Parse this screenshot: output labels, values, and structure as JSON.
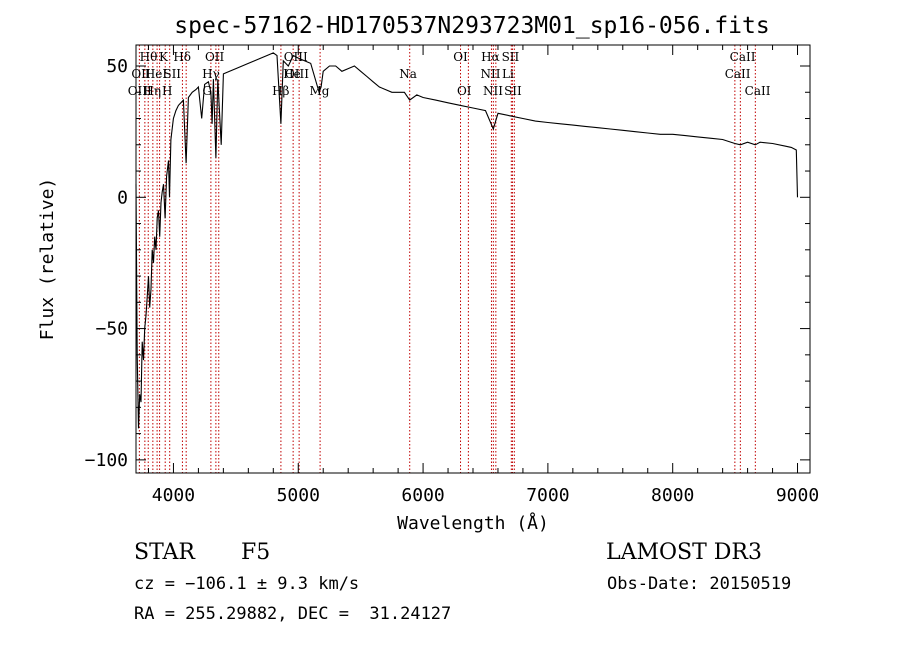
{
  "chart_data": {
    "type": "line",
    "title": "spec-57162-HD170537N293723M01_sp16-056.fits",
    "xlabel": "Wavelength (Å)",
    "ylabel": "Flux (relative)",
    "xlim": [
      3700,
      9100
    ],
    "ylim": [
      -105,
      58
    ],
    "xticks": [
      4000,
      5000,
      6000,
      7000,
      8000,
      9000
    ],
    "yticks": [
      -100,
      -50,
      0,
      50
    ],
    "grid": false,
    "series": [
      {
        "name": "flux",
        "points": [
          [
            3700,
            5
          ],
          [
            3710,
            -60
          ],
          [
            3720,
            -88
          ],
          [
            3730,
            -75
          ],
          [
            3740,
            -78
          ],
          [
            3750,
            -55
          ],
          [
            3760,
            -62
          ],
          [
            3770,
            -50
          ],
          [
            3780,
            -45
          ],
          [
            3790,
            -38
          ],
          [
            3800,
            -30
          ],
          [
            3810,
            -42
          ],
          [
            3820,
            -35
          ],
          [
            3830,
            -20
          ],
          [
            3840,
            -25
          ],
          [
            3850,
            -15
          ],
          [
            3860,
            -20
          ],
          [
            3870,
            -8
          ],
          [
            3880,
            -5
          ],
          [
            3890,
            -15
          ],
          [
            3900,
            -2
          ],
          [
            3910,
            2
          ],
          [
            3920,
            5
          ],
          [
            3933,
            -8
          ],
          [
            3945,
            8
          ],
          [
            3960,
            14
          ],
          [
            3968,
            0
          ],
          [
            3980,
            22
          ],
          [
            4000,
            30
          ],
          [
            4020,
            33
          ],
          [
            4040,
            35
          ],
          [
            4060,
            36
          ],
          [
            4080,
            37
          ],
          [
            4101,
            13
          ],
          [
            4120,
            38
          ],
          [
            4150,
            40
          ],
          [
            4180,
            41
          ],
          [
            4200,
            42
          ],
          [
            4226,
            30
          ],
          [
            4250,
            43
          ],
          [
            4280,
            44
          ],
          [
            4300,
            40
          ],
          [
            4310,
            28
          ],
          [
            4320,
            45
          ],
          [
            4340,
            15
          ],
          [
            4355,
            45
          ],
          [
            4383,
            20
          ],
          [
            4400,
            47
          ],
          [
            4450,
            48
          ],
          [
            4500,
            49
          ],
          [
            4550,
            50
          ],
          [
            4600,
            51
          ],
          [
            4650,
            52
          ],
          [
            4700,
            53
          ],
          [
            4750,
            54
          ],
          [
            4800,
            55
          ],
          [
            4830,
            54
          ],
          [
            4861,
            28
          ],
          [
            4880,
            52
          ],
          [
            4920,
            50
          ],
          [
            4960,
            54
          ],
          [
            5000,
            53
          ],
          [
            5050,
            52
          ],
          [
            5100,
            51
          ],
          [
            5167,
            40
          ],
          [
            5183,
            42
          ],
          [
            5200,
            48
          ],
          [
            5250,
            50
          ],
          [
            5300,
            50
          ],
          [
            5350,
            48
          ],
          [
            5400,
            49
          ],
          [
            5450,
            50
          ],
          [
            5500,
            48
          ],
          [
            5550,
            46
          ],
          [
            5600,
            44
          ],
          [
            5650,
            42
          ],
          [
            5700,
            41
          ],
          [
            5750,
            40
          ],
          [
            5800,
            40
          ],
          [
            5850,
            40
          ],
          [
            5893,
            37
          ],
          [
            5950,
            39
          ],
          [
            6000,
            38
          ],
          [
            6100,
            37
          ],
          [
            6200,
            36
          ],
          [
            6300,
            35
          ],
          [
            6400,
            34
          ],
          [
            6500,
            33
          ],
          [
            6563,
            26
          ],
          [
            6600,
            32
          ],
          [
            6700,
            31
          ],
          [
            6800,
            30
          ],
          [
            6900,
            29
          ],
          [
            7000,
            28.5
          ],
          [
            7100,
            28
          ],
          [
            7200,
            27.5
          ],
          [
            7300,
            27
          ],
          [
            7400,
            26.5
          ],
          [
            7500,
            26
          ],
          [
            7600,
            25.5
          ],
          [
            7700,
            25
          ],
          [
            7800,
            24.5
          ],
          [
            7900,
            24
          ],
          [
            8000,
            24
          ],
          [
            8100,
            23.5
          ],
          [
            8200,
            23
          ],
          [
            8300,
            22.5
          ],
          [
            8400,
            22
          ],
          [
            8498,
            20.5
          ],
          [
            8542,
            20
          ],
          [
            8600,
            21
          ],
          [
            8662,
            20
          ],
          [
            8700,
            21
          ],
          [
            8800,
            20.5
          ],
          [
            8900,
            19.5
          ],
          [
            8950,
            19
          ],
          [
            8990,
            18
          ],
          [
            9000,
            0
          ]
        ]
      }
    ],
    "lines": [
      {
        "w": 3727,
        "labels": [
          "OII"
        ]
      },
      {
        "w": 3771,
        "labels": [
          "OII"
        ]
      },
      {
        "w": 3798,
        "labels": [
          "Hθ"
        ]
      },
      {
        "w": 3835,
        "labels": [
          "Hη"
        ]
      },
      {
        "w": 3869,
        "labels": [
          "NeIII"
        ]
      },
      {
        "w": 3889,
        "labels": [
          "HeI"
        ]
      },
      {
        "w": 3934,
        "labels": [
          "K"
        ]
      },
      {
        "w": 3970,
        "labels": [
          "H"
        ]
      },
      {
        "w": 4072,
        "labels": [
          "SII"
        ]
      },
      {
        "w": 4102,
        "labels": [
          "Hδ"
        ]
      },
      {
        "w": 4300,
        "labels": [
          "G"
        ]
      },
      {
        "w": 4340,
        "labels": [
          "Hγ"
        ]
      },
      {
        "w": 4363,
        "labels": [
          "OIII"
        ]
      },
      {
        "w": 4861,
        "labels": [
          "Hβ"
        ]
      },
      {
        "w": 4959,
        "labels": [
          "OIII"
        ]
      },
      {
        "w": 5007,
        "labels": [
          "OIII"
        ]
      },
      {
        "w": 5175,
        "labels": [
          "Mg"
        ]
      },
      {
        "w": 5893,
        "labels": [
          "Na"
        ]
      },
      {
        "w": 6300,
        "labels": [
          "OI"
        ]
      },
      {
        "w": 6363,
        "labels": [
          "OI"
        ]
      },
      {
        "w": 6548,
        "labels": [
          "NII"
        ]
      },
      {
        "w": 6563,
        "labels": [
          "Hα"
        ]
      },
      {
        "w": 6583,
        "labels": [
          "NII"
        ]
      },
      {
        "w": 6707,
        "labels": [
          "Li"
        ]
      },
      {
        "w": 6716,
        "labels": [
          "SII"
        ]
      },
      {
        "w": 6731,
        "labels": [
          "SII"
        ]
      },
      {
        "w": 8498,
        "labels": [
          "CaII"
        ]
      },
      {
        "w": 8542,
        "labels": [
          "CaII"
        ]
      },
      {
        "w": 8662,
        "labels": [
          "CaII"
        ]
      }
    ],
    "line_labels": [
      {
        "text": "Hθ",
        "w": 3800,
        "row": 0
      },
      {
        "text": "K",
        "w": 3920,
        "row": 0
      },
      {
        "text": "Hδ",
        "w": 4070,
        "row": 0
      },
      {
        "text": "OII",
        "w": 4330,
        "row": 0
      },
      {
        "text": "OIII",
        "w": 4980,
        "row": 0
      },
      {
        "text": "OI",
        "w": 6300,
        "row": 0
      },
      {
        "text": "Hα",
        "w": 6540,
        "row": 0
      },
      {
        "text": "SII",
        "w": 6700,
        "row": 0
      },
      {
        "text": "CaII",
        "w": 8560,
        "row": 0
      },
      {
        "text": "OII",
        "w": 3740,
        "row": 1
      },
      {
        "text": "HeI",
        "w": 3860,
        "row": 1
      },
      {
        "text": "SII",
        "w": 3990,
        "row": 1
      },
      {
        "text": "Hγ",
        "w": 4300,
        "row": 1
      },
      {
        "text": "He",
        "w": 4950,
        "row": 1
      },
      {
        "text": "OIII",
        "w": 4990,
        "row": 1
      },
      {
        "text": "Na",
        "w": 5880,
        "row": 1
      },
      {
        "text": "NII",
        "w": 6540,
        "row": 1
      },
      {
        "text": "Li",
        "w": 6680,
        "row": 1
      },
      {
        "text": "CaII",
        "w": 8520,
        "row": 1
      },
      {
        "text": "OIII",
        "w": 3730,
        "row": 2
      },
      {
        "text": "Hη",
        "w": 3830,
        "row": 2
      },
      {
        "text": "H",
        "w": 3950,
        "row": 2
      },
      {
        "text": "G",
        "w": 4270,
        "row": 2
      },
      {
        "text": "Hβ",
        "w": 4860,
        "row": 2
      },
      {
        "text": "Mg",
        "w": 5170,
        "row": 2
      },
      {
        "text": "OI",
        "w": 6330,
        "row": 2
      },
      {
        "text": "NII",
        "w": 6560,
        "row": 2
      },
      {
        "text": "SII",
        "w": 6720,
        "row": 2
      },
      {
        "text": "CaII",
        "w": 8680,
        "row": 2
      }
    ],
    "colors": {
      "spectrum": "#000000",
      "line_marker": "#c00000"
    }
  },
  "info": {
    "object_class": "STAR",
    "subclass": "F5",
    "survey": "LAMOST DR3",
    "redshift": "cz = −106.1 ± 9.3 km/s",
    "obs_date": "Obs-Date: 20150519",
    "coords": "RA = 255.29882, DEC =  31.24127"
  }
}
